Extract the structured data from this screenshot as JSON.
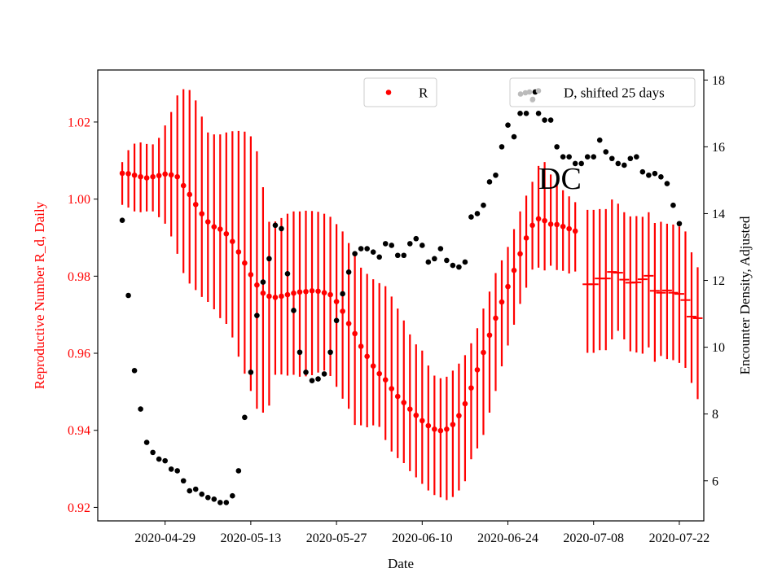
{
  "chart_data": {
    "type": "scatter",
    "title": "",
    "annotation": "DC",
    "xlabel": "Date",
    "ylabel_left": "Reproductive Number R_d, Daily",
    "ylabel_right": "Encounter Density, Adjusted",
    "x_ticks": [
      "2020-04-29",
      "2020-05-13",
      "2020-05-27",
      "2020-06-10",
      "2020-06-24",
      "2020-07-08",
      "2020-07-22"
    ],
    "y_left_ticks": [
      "0.92",
      "0.94",
      "0.96",
      "0.98",
      "1.00",
      "1.02"
    ],
    "y_right_ticks": [
      "6",
      "8",
      "10",
      "12",
      "14",
      "16",
      "18"
    ],
    "y_left_range": [
      0.9165,
      1.0335
    ],
    "y_right_range": [
      4.8,
      18.3
    ],
    "x_range_start": "2020-04-18",
    "x_range_end": "2020-07-26",
    "legend": {
      "r_label": "R",
      "d_label": "D, shifted 25 days",
      "r_position": "upper-center",
      "d_position": "upper-right"
    },
    "colors": {
      "r": "#ff0000",
      "d": "#000000",
      "left_axis": "#ff0000"
    },
    "series": [
      {
        "name": "R",
        "axis": "left",
        "marker": "dot",
        "start_date": "2020-04-22",
        "values": [
          1.0067,
          1.0066,
          1.0062,
          1.0058,
          1.0055,
          1.0058,
          1.0061,
          1.0065,
          1.0063,
          1.0058,
          1.0035,
          1.0012,
          0.9986,
          0.9962,
          0.9941,
          0.9928,
          0.9922,
          0.991,
          0.989,
          0.9863,
          0.9834,
          0.9804,
          0.9777,
          0.9756,
          0.9748,
          0.9745,
          0.9748,
          0.9752,
          0.9756,
          0.9759,
          0.976,
          0.9762,
          0.9761,
          0.9757,
          0.9752,
          0.9734,
          0.9709,
          0.9677,
          0.9651,
          0.9618,
          0.9592,
          0.9567,
          0.9547,
          0.9531,
          0.9508,
          0.9488,
          0.9472,
          0.9455,
          0.9439,
          0.9425,
          0.9412,
          0.9403,
          0.9399,
          0.9403,
          0.9415,
          0.9438,
          0.9469,
          0.951,
          0.9557,
          0.9602,
          0.9647,
          0.9691,
          0.9733,
          0.9773,
          0.9815,
          0.9858,
          0.9899,
          0.9932,
          0.9949,
          0.9944,
          0.9935,
          0.9934,
          0.9929,
          0.9923,
          0.9917
        ],
        "lower": [
          0.9985,
          0.9978,
          0.9968,
          0.9966,
          0.9968,
          0.9968,
          0.9953,
          0.9936,
          0.9903,
          0.9858,
          0.9808,
          0.9781,
          0.9764,
          0.9746,
          0.9733,
          0.9714,
          0.9691,
          0.9676,
          0.9641,
          0.9591,
          0.9547,
          0.9502,
          0.9456,
          0.9446,
          0.9464,
          0.9544,
          0.9545,
          0.9542,
          0.9544,
          0.9539,
          0.954,
          0.9543,
          0.955,
          0.9555,
          0.9541,
          0.9513,
          0.9482,
          0.9456,
          0.9414,
          0.9413,
          0.9408,
          0.9413,
          0.9409,
          0.9375,
          0.9345,
          0.9328,
          0.9315,
          0.9294,
          0.9278,
          0.9261,
          0.9244,
          0.9232,
          0.9226,
          0.9219,
          0.9227,
          0.9244,
          0.9268,
          0.9325,
          0.9353,
          0.9388,
          0.9446,
          0.9502,
          0.9566,
          0.962,
          0.9674,
          0.9728,
          0.977,
          0.9817,
          0.9822,
          0.9815,
          0.9827,
          0.9816,
          0.9814,
          0.9807,
          0.9812
        ],
        "upper": [
          1.0096,
          1.0127,
          1.0144,
          1.0147,
          1.0143,
          1.0142,
          1.0159,
          1.0191,
          1.0226,
          1.0269,
          1.0285,
          1.0283,
          1.0256,
          1.0214,
          1.0173,
          1.0168,
          1.0168,
          1.0173,
          1.0176,
          1.0177,
          1.0175,
          1.0163,
          1.0124,
          1.0031,
          0.9941,
          0.9942,
          0.9951,
          0.9962,
          0.9968,
          0.9968,
          0.997,
          0.9969,
          0.9967,
          0.9962,
          0.9954,
          0.9935,
          0.9916,
          0.9886,
          0.9856,
          0.9822,
          0.9806,
          0.9792,
          0.9782,
          0.9774,
          0.9747,
          0.9716,
          0.9685,
          0.9649,
          0.9623,
          0.9607,
          0.9568,
          0.9542,
          0.9535,
          0.9539,
          0.9555,
          0.9573,
          0.9595,
          0.9626,
          0.9665,
          0.9716,
          0.976,
          0.9808,
          0.9841,
          0.9876,
          0.9922,
          0.9968,
          1.0009,
          1.0045,
          1.0086,
          1.0096,
          1.0064,
          1.0037,
          1.0023,
          1.0007,
          0.9992
        ]
      },
      {
        "name": "R",
        "axis": "left",
        "marker": "hline",
        "start_date": "2020-07-07",
        "values": [
          0.9779,
          0.9779,
          0.9794,
          0.9794,
          0.9811,
          0.9809,
          0.9791,
          0.9783,
          0.9784,
          0.9792,
          0.9801,
          0.9762,
          0.9757,
          0.9763,
          0.9757,
          0.9754,
          0.9738,
          0.9695,
          0.9691
        ],
        "lower": [
          0.9601,
          0.9601,
          0.9608,
          0.9608,
          0.9636,
          0.9658,
          0.9636,
          0.9605,
          0.9602,
          0.9599,
          0.9615,
          0.9578,
          0.9593,
          0.9585,
          0.9582,
          0.9575,
          0.9562,
          0.9523,
          0.9481
        ],
        "upper": [
          0.9972,
          0.9972,
          0.9974,
          0.9974,
          0.9999,
          0.9988,
          0.9966,
          0.9955,
          0.9956,
          0.9954,
          0.9966,
          0.9938,
          0.9941,
          0.9936,
          0.9934,
          0.9929,
          0.9916,
          0.9862,
          0.9823
        ]
      },
      {
        "name": "D, shifted 25 days",
        "axis": "right",
        "marker": "dot",
        "start_date": "2020-04-22",
        "values": [
          13.8,
          11.55,
          9.3,
          8.15,
          7.15,
          6.85,
          6.65,
          6.6,
          6.35,
          6.3,
          6.0,
          5.7,
          5.75,
          5.6,
          5.5,
          5.45,
          5.35,
          5.35,
          5.55,
          6.3,
          7.9,
          9.25,
          10.95,
          11.95,
          12.65,
          13.65,
          13.55,
          12.2,
          11.1,
          9.85,
          9.25,
          9.0,
          9.05,
          9.2,
          9.85,
          10.8,
          11.6,
          12.25,
          12.8,
          12.95,
          12.95,
          12.85,
          12.7,
          13.1,
          13.05,
          12.75,
          12.75,
          13.1,
          13.25,
          13.05,
          12.55,
          12.65,
          12.95,
          12.6,
          12.45,
          12.4,
          12.55,
          13.9,
          14.0,
          14.25,
          14.95,
          15.15,
          16.0,
          16.65,
          16.3,
          17.0,
          17.0,
          17.4,
          17.0,
          16.8,
          16.8,
          16.0,
          15.7,
          15.7,
          15.5,
          15.5,
          15.7,
          15.7,
          16.2,
          15.85,
          15.65,
          15.5,
          15.45,
          15.65,
          15.7,
          15.25,
          15.15,
          15.2,
          15.1,
          14.9,
          14.25,
          13.7
        ]
      }
    ]
  }
}
